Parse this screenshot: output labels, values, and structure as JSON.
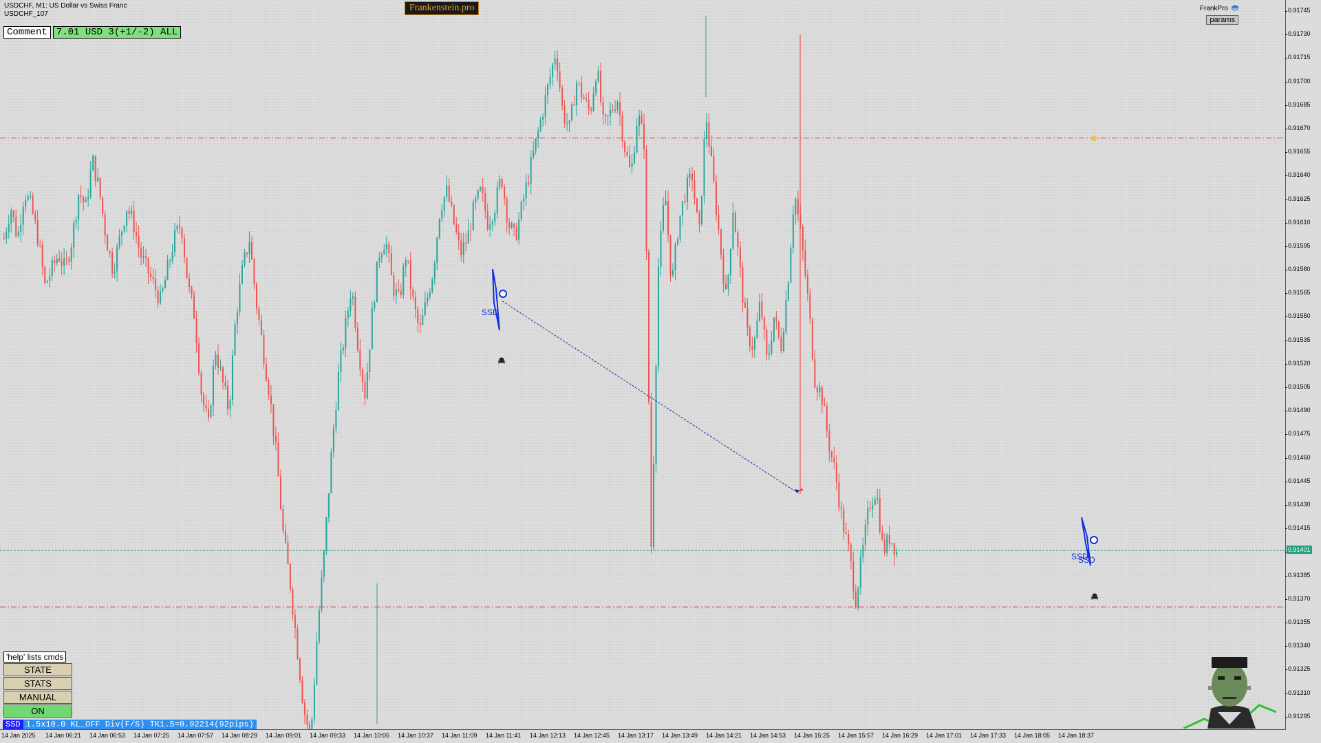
{
  "chart_header": {
    "symbol_line": "USDCHF, M1:  US Dollar vs Swiss Franc",
    "subtitle": "USDCHF_107",
    "brand": "Frankenstein.pro",
    "account": "FrankPro",
    "params_button": "params"
  },
  "comment": {
    "label": "Comment",
    "value": "7.01 USD 3(+1/-2) ALL"
  },
  "control_panel": {
    "help_text": "'help' lists cmds",
    "state_button": "STATE",
    "stats_button": "STATS",
    "manual_button": "MANUAL",
    "on_button": "ON"
  },
  "status_bar": {
    "tag": "SSD",
    "text": "1.5x10.0 KL_OFF Div(F/S) TK1.5=0.92214(92pips)"
  },
  "signals": {
    "label_1": "SSD",
    "label_2": "SSD",
    "label_3": "SSD"
  },
  "colors": {
    "bull": "#26a69a",
    "bear": "#ef5350",
    "hline_red": "#e03030",
    "hline_green": "#20a080",
    "signal_blue": "#1030e0"
  },
  "chart_data": {
    "type": "candlestick",
    "symbol": "USDCHF",
    "timeframe": "M1",
    "ylim": [
      0.91287,
      0.91752
    ],
    "y_ticks": [
      "0.91745",
      "0.91730",
      "0.91715",
      "0.91700",
      "0.91685",
      "0.91670",
      "0.91655",
      "0.91640",
      "0.91625",
      "0.91610",
      "0.91595",
      "0.91580",
      "0.91565",
      "0.91550",
      "0.91535",
      "0.91520",
      "0.91505",
      "0.91490",
      "0.91475",
      "0.91460",
      "0.91445",
      "0.91430",
      "0.91415",
      "0.91400",
      "0.91385",
      "0.91370",
      "0.91355",
      "0.91340",
      "0.91325",
      "0.91310",
      "0.91295"
    ],
    "current_price": "0.91401",
    "x_ticks": [
      "14 Jan 2025",
      "14 Jan 06:21",
      "14 Jan 06:53",
      "14 Jan 07:25",
      "14 Jan 07:57",
      "14 Jan 08:29",
      "14 Jan 09:01",
      "14 Jan 09:33",
      "14 Jan 10:05",
      "14 Jan 10:37",
      "14 Jan 11:09",
      "14 Jan 11:41",
      "14 Jan 12:13",
      "14 Jan 12:45",
      "14 Jan 13:17",
      "14 Jan 13:49",
      "14 Jan 14:21",
      "14 Jan 14:53",
      "14 Jan 15:25",
      "14 Jan 15:57",
      "14 Jan 16:29",
      "14 Jan 17:01",
      "14 Jan 17:33",
      "14 Jan 18:05",
      "14 Jan 18:37"
    ],
    "horizontal_lines": [
      {
        "price": 0.91664,
        "style": "dash-dot",
        "color": "red"
      },
      {
        "price": 0.91401,
        "style": "dashed",
        "color": "green"
      },
      {
        "price": 0.91365,
        "style": "dash-dot",
        "color": "red"
      }
    ],
    "trend_line": {
      "from": [
        0.9156,
        "14 Jan 11:44"
      ],
      "to": [
        0.91437,
        "14 Jan 14:53"
      ]
    },
    "close_path": [
      0.916,
      0.9162,
      0.916,
      0.9163,
      0.9162,
      0.916,
      0.9157,
      0.9158,
      0.9159,
      0.9158,
      0.916,
      0.9163,
      0.9162,
      0.9165,
      0.9163,
      0.916,
      0.9158,
      0.916,
      0.9162,
      0.9161,
      0.9159,
      0.9158,
      0.9157,
      0.9156,
      0.9158,
      0.916,
      0.9161,
      0.9157,
      0.9155,
      0.915,
      0.9148,
      0.9153,
      0.9151,
      0.9149,
      0.9155,
      0.9158,
      0.916,
      0.9156,
      0.9153,
      0.915,
      0.9146,
      0.9141,
      0.9138,
      0.9134,
      0.913,
      0.9128,
      0.9135,
      0.914,
      0.9146,
      0.9151,
      0.9154,
      0.9157,
      0.9153,
      0.915,
      0.9155,
      0.9159,
      0.916,
      0.9157,
      0.9156,
      0.9159,
      0.9156,
      0.9154,
      0.9156,
      0.9158,
      0.9162,
      0.9163,
      0.9161,
      0.9159,
      0.916,
      0.9162,
      0.9163,
      0.9161,
      0.9162,
      0.9164,
      0.9161,
      0.916,
      0.9162,
      0.9164,
      0.9166,
      0.9168,
      0.917,
      0.9172,
      0.9168,
      0.9167,
      0.917,
      0.9169,
      0.9168,
      0.9171,
      0.9167,
      0.9168,
      0.9169,
      0.9166,
      0.9164,
      0.9168,
      0.9166,
      0.914,
      0.9158,
      0.9163,
      0.9157,
      0.9161,
      0.9163,
      0.9164,
      0.916,
      0.9168,
      0.9164,
      0.916,
      0.9156,
      0.9162,
      0.9158,
      0.9154,
      0.9153,
      0.9156,
      0.9152,
      0.9155,
      0.9153,
      0.9157,
      0.9163,
      0.916,
      0.9156,
      0.9151,
      0.915,
      0.9147,
      0.9145,
      0.9142,
      0.914,
      0.9137,
      0.914,
      0.9143,
      0.9144,
      0.914,
      0.9141,
      0.914
    ]
  }
}
